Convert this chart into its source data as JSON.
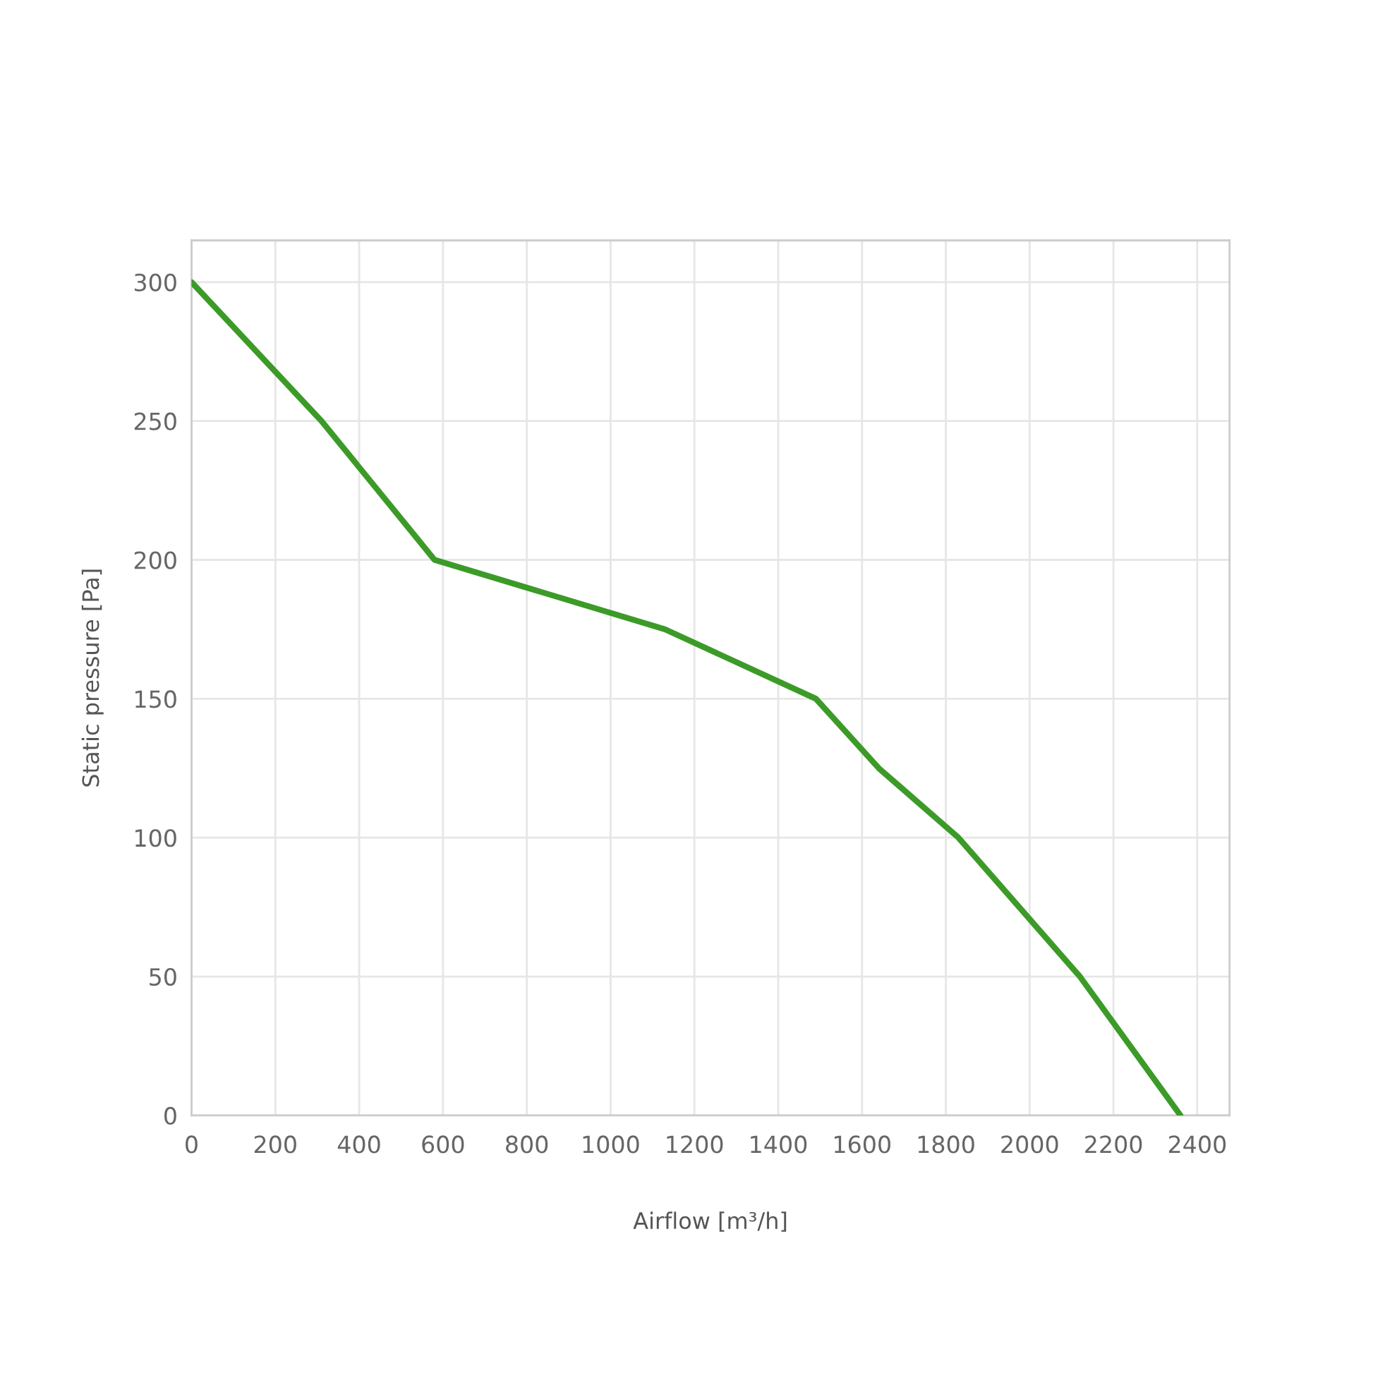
{
  "chart_data": {
    "type": "line",
    "xlabel": "Airflow [m³/h]",
    "ylabel": "Static pressure [Pa]",
    "series": [
      {
        "color": "#3c9b28",
        "x": [
          0,
          310,
          580,
          1130,
          1490,
          1640,
          1830,
          2120,
          2360
        ],
        "values": [
          300,
          250,
          200,
          175,
          150,
          125,
          100,
          50,
          0
        ]
      }
    ],
    "xlim": [
      0,
      2477
    ],
    "ylim": [
      0,
      315
    ],
    "xticks": [
      0,
      200,
      400,
      600,
      800,
      1000,
      1200,
      1400,
      1600,
      1800,
      2000,
      2200,
      2400
    ],
    "yticks": [
      0,
      50,
      100,
      150,
      200,
      250,
      300
    ],
    "grid": true,
    "marker": "none",
    "line_style": "solid"
  }
}
